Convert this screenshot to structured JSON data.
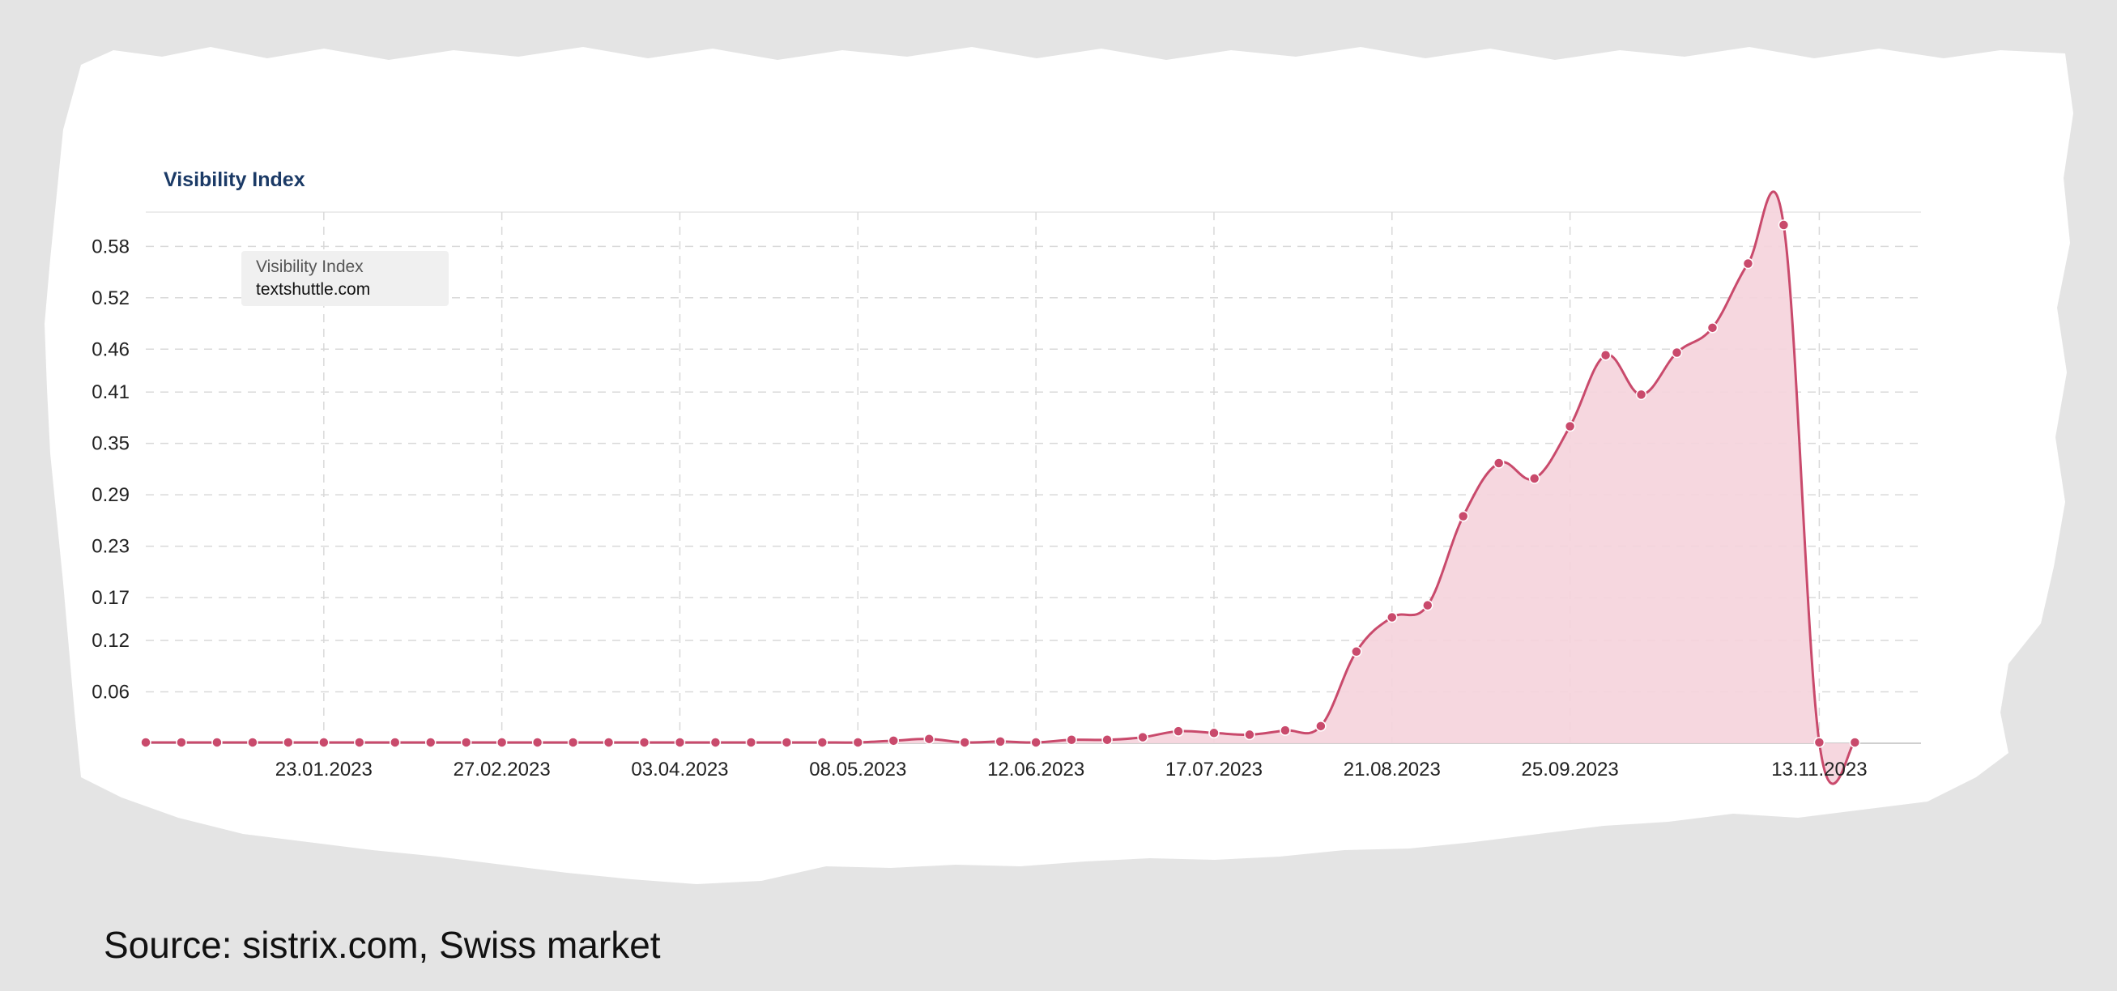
{
  "source_note": "Source: sistrix.com, Swiss market",
  "colors": {
    "line": "#c94a6c",
    "area": "#f5d3db",
    "grid": "#d9d9d9"
  },
  "chart_data": {
    "type": "area",
    "title": "Visibility Index",
    "legend": {
      "title": "Visibility Index",
      "series": "textshuttle.com",
      "placement": "top-left"
    },
    "grid": true,
    "ylim": [
      0,
      0.62
    ],
    "yticks": [
      "0.06",
      "0.12",
      "0.17",
      "0.23",
      "0.29",
      "0.35",
      "0.41",
      "0.46",
      "0.52",
      "0.58"
    ],
    "xlim": [
      "2022-12-19",
      "2023-12-03"
    ],
    "xticks": [
      "23.01.2023",
      "27.02.2023",
      "03.04.2023",
      "08.05.2023",
      "12.06.2023",
      "17.07.2023",
      "21.08.2023",
      "25.09.2023",
      "13.11.2023"
    ],
    "series": [
      {
        "name": "textshuttle.com",
        "x": [
          "2022-12-19",
          "2022-12-26",
          "2023-01-02",
          "2023-01-09",
          "2023-01-16",
          "2023-01-23",
          "2023-01-30",
          "2023-02-06",
          "2023-02-13",
          "2023-02-20",
          "2023-02-27",
          "2023-03-06",
          "2023-03-13",
          "2023-03-20",
          "2023-03-27",
          "2023-04-03",
          "2023-04-10",
          "2023-04-17",
          "2023-04-24",
          "2023-05-01",
          "2023-05-08",
          "2023-05-15",
          "2023-05-22",
          "2023-05-29",
          "2023-06-05",
          "2023-06-12",
          "2023-06-19",
          "2023-06-26",
          "2023-07-03",
          "2023-07-10",
          "2023-07-17",
          "2023-07-24",
          "2023-07-31",
          "2023-08-07",
          "2023-08-14",
          "2023-08-21",
          "2023-08-28",
          "2023-09-04",
          "2023-09-11",
          "2023-09-18",
          "2023-09-25",
          "2023-10-02",
          "2023-10-09",
          "2023-10-16",
          "2023-10-23",
          "2023-10-30",
          "2023-11-06",
          "2023-11-13",
          "2023-11-20"
        ],
        "values": [
          0.001,
          0.001,
          0.001,
          0.001,
          0.001,
          0.001,
          0.001,
          0.001,
          0.001,
          0.001,
          0.001,
          0.001,
          0.001,
          0.001,
          0.001,
          0.001,
          0.001,
          0.001,
          0.001,
          0.001,
          0.001,
          0.003,
          0.005,
          0.001,
          0.002,
          0.001,
          0.004,
          0.004,
          0.007,
          0.014,
          0.012,
          0.01,
          0.015,
          0.02,
          0.107,
          0.147,
          0.161,
          0.265,
          0.327,
          0.309,
          0.37,
          0.453,
          0.407,
          0.456,
          0.485,
          0.56,
          0.605,
          0.001,
          0.001
        ]
      }
    ]
  }
}
